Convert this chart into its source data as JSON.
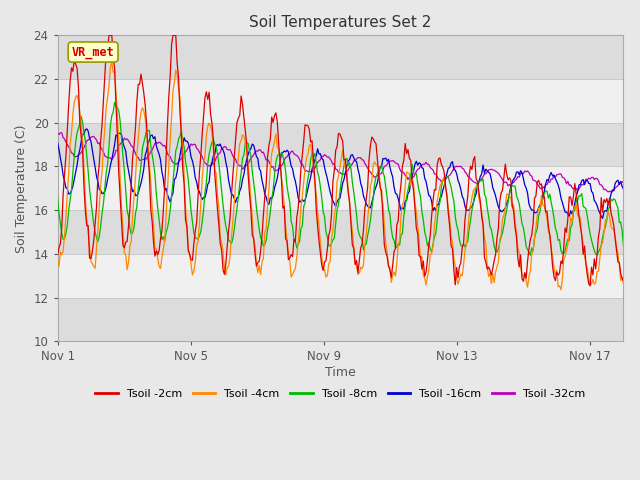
{
  "title": "Soil Temperatures Set 2",
  "xlabel": "Time",
  "ylabel": "Soil Temperature (C)",
  "ylim": [
    10,
    24
  ],
  "yticks": [
    10,
    12,
    14,
    16,
    18,
    20,
    22,
    24
  ],
  "bg_outer": "#e8e8e8",
  "bg_band_dark": "#dcdcdc",
  "bg_band_light": "#f0f0f0",
  "grid_color": "#c8c8c8",
  "series_colors": {
    "2cm": "#dd0000",
    "4cm": "#ff8800",
    "8cm": "#00bb00",
    "16cm": "#0000cc",
    "32cm": "#bb00bb"
  },
  "legend_labels": [
    "Tsoil -2cm",
    "Tsoil -4cm",
    "Tsoil -8cm",
    "Tsoil -16cm",
    "Tsoil -32cm"
  ],
  "annotation_text": "VR_met",
  "annotation_color": "#cc0000",
  "annotation_bg": "#ffffcc",
  "annotation_border": "#999900",
  "xtick_labels": [
    "Nov 1",
    "Nov 5",
    "Nov 9",
    "Nov 13",
    "Nov 17"
  ],
  "xtick_positions": [
    0,
    4,
    8,
    12,
    16
  ]
}
